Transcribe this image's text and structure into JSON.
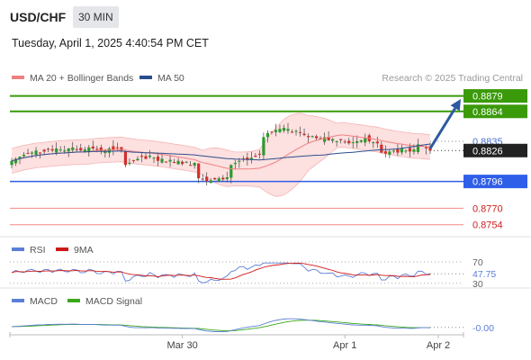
{
  "header": {
    "symbol": "USD/CHF",
    "timeframe": "30 MIN",
    "datetime": "Tuesday, April 1, 2025 4:40:54 PM CET"
  },
  "colors": {
    "bollinger": "#f08080",
    "band_fill": "#fde0e0",
    "ma50": "#2b4f8c",
    "green_level": "#3a9a0a",
    "blue_level": "#2f5ee8",
    "red_level": "#f08a8a",
    "current": "#222222",
    "up_candle": "#2e9a2e",
    "down_candle": "#d0312d",
    "arrow": "#2d5aa0",
    "rsi": "#5b7fd6",
    "rsi_ma": "#d01818",
    "macd": "#5b7fd6",
    "macd_signal": "#3aa818"
  },
  "chart_data": [
    {
      "type": "candlestick",
      "legend": [
        {
          "name": "MA 20 + Bollinger Bands",
          "color": "#f08080"
        },
        {
          "name": "MA 50",
          "color": "#2b4f8c"
        }
      ],
      "source": "Research © 2025 Trading Central",
      "ylim": [
        0.8745,
        0.889
      ],
      "x_ticks": [
        {
          "label": "Mar 30",
          "index": 42
        },
        {
          "label": "Apr 1",
          "index": 82
        },
        {
          "label": "Apr 2",
          "index": 105
        }
      ],
      "closes": [
        0.8816,
        0.8818,
        0.882,
        0.8822,
        0.8823,
        0.8824,
        0.8826,
        0.8824,
        0.8825,
        0.8827,
        0.8826,
        0.8828,
        0.8827,
        0.8826,
        0.8828,
        0.8829,
        0.8827,
        0.8826,
        0.8827,
        0.8829,
        0.8828,
        0.8827,
        0.8825,
        0.8826,
        0.8828,
        0.8827,
        0.8829,
        0.8826,
        0.8812,
        0.8814,
        0.8816,
        0.8818,
        0.882,
        0.8818,
        0.8821,
        0.8819,
        0.8816,
        0.8818,
        0.8815,
        0.8817,
        0.8814,
        0.8816,
        0.8813,
        0.8815,
        0.8812,
        0.8814,
        0.8799,
        0.8798,
        0.8796,
        0.8797,
        0.8798,
        0.8799,
        0.8798,
        0.88,
        0.8812,
        0.8814,
        0.8816,
        0.8818,
        0.8817,
        0.8819,
        0.882,
        0.8822,
        0.8839,
        0.8843,
        0.8844,
        0.8846,
        0.8847,
        0.8848,
        0.8847,
        0.8844,
        0.8845,
        0.8843,
        0.8841,
        0.8839,
        0.884,
        0.8838,
        0.8837,
        0.8839,
        0.8836,
        0.8837,
        0.8835,
        0.8836,
        0.8834,
        0.8833,
        0.8834,
        0.8835,
        0.8836,
        0.8838,
        0.8835,
        0.8834,
        0.8833,
        0.8824,
        0.8823,
        0.8825,
        0.8826,
        0.8824,
        0.8828,
        0.8826,
        0.8825,
        0.8827,
        0.8832,
        0.883,
        0.8828,
        0.8826
      ],
      "arrow": {
        "from_index": 103,
        "from_value": 0.8828,
        "to_value": 0.8876
      },
      "levels": [
        {
          "label": "0.8879",
          "value": 0.8879,
          "kind": "resistance"
        },
        {
          "label": "0.8864",
          "value": 0.8864,
          "kind": "resistance"
        },
        {
          "label": "0.8835",
          "value": 0.8835,
          "kind": "pivot"
        },
        {
          "label": "0.8826",
          "value": 0.8826,
          "kind": "current"
        },
        {
          "label": "0.8796",
          "value": 0.8796,
          "kind": "support"
        },
        {
          "label": "0.8770",
          "value": 0.877,
          "kind": "support_minor"
        },
        {
          "label": "0.8754",
          "value": 0.8754,
          "kind": "support_minor"
        }
      ]
    },
    {
      "type": "line",
      "series": [
        {
          "name": "RSI"
        },
        {
          "name": "9MA"
        }
      ],
      "ylim": [
        28,
        80
      ],
      "reference_lines": [
        {
          "label": "70",
          "value": 70
        },
        {
          "label": "30",
          "value": 30
        }
      ],
      "value_label": "47.75",
      "rsi_value": 47.75
    },
    {
      "type": "line",
      "series": [
        {
          "name": "MACD"
        },
        {
          "name": "MACD Signal"
        }
      ],
      "ylim": [
        -0.001,
        0.0025
      ],
      "value_label": "-0.00",
      "value": -0.0001
    }
  ]
}
